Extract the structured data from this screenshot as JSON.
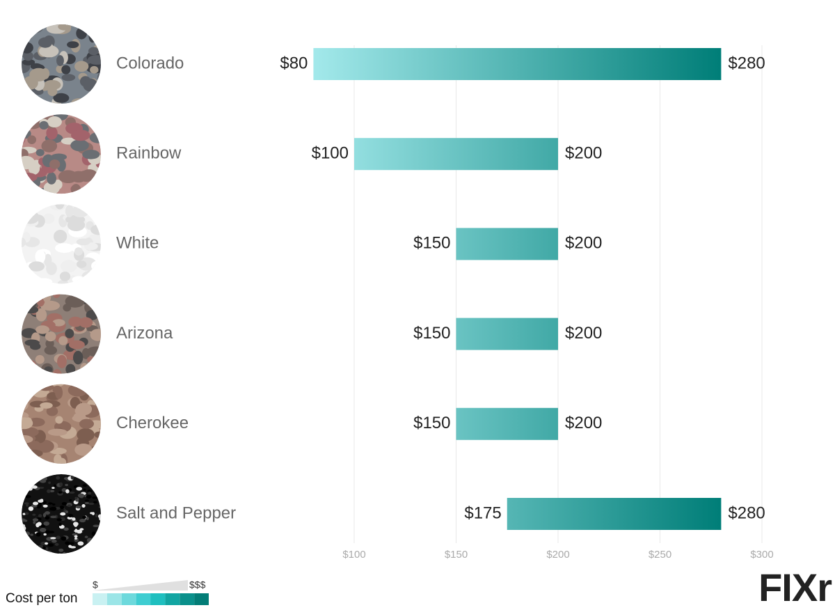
{
  "chart_data": {
    "type": "range-bar",
    "categories": [
      "Colorado",
      "Rainbow",
      "White",
      "Arizona",
      "Cherokee",
      "Salt and Pepper"
    ],
    "low": [
      80,
      100,
      150,
      150,
      150,
      175
    ],
    "low_labels": [
      "$80",
      "$100",
      "$150",
      "$150",
      "$150",
      "$175"
    ],
    "high": [
      280,
      200,
      200,
      200,
      200,
      280
    ],
    "high_labels": [
      "$280",
      "$200",
      "$200",
      "$200",
      "$200",
      "$280"
    ],
    "xlim": [
      80,
      300
    ],
    "xticks": [
      {
        "value": 100,
        "label": "$100"
      },
      {
        "value": 150,
        "label": "$150"
      },
      {
        "value": 200,
        "label": "$200"
      },
      {
        "value": 250,
        "label": "$250"
      },
      {
        "value": 300,
        "label": "$300"
      }
    ],
    "grid": true,
    "color_low": "#a3e9eb",
    "color_high": "#007e78",
    "legend": {
      "title": "Cost per ton",
      "low_label": "$",
      "high_label": "$$$",
      "colors": [
        "#c9f1f2",
        "#9be5e7",
        "#6dd9dc",
        "#3fcdd1",
        "#1fbfbf",
        "#12a5a2",
        "#0a908b",
        "#037d77"
      ]
    },
    "logo": "FIXr"
  }
}
